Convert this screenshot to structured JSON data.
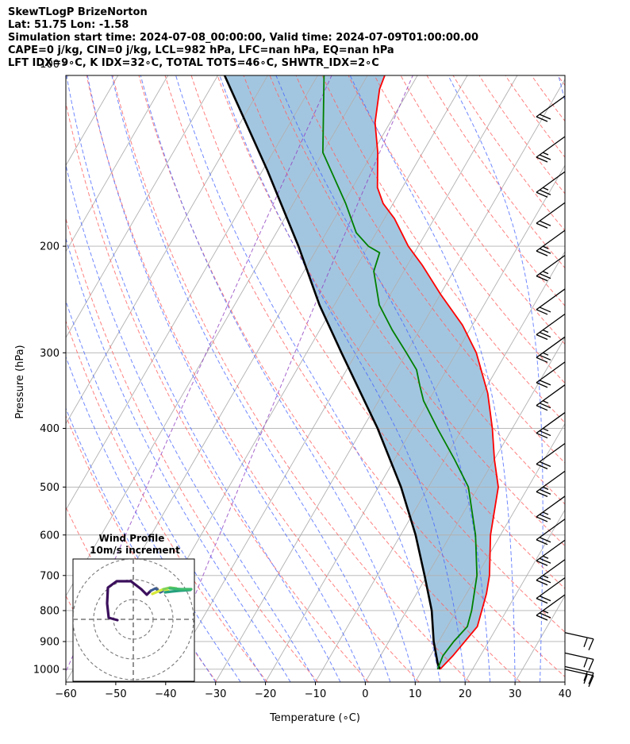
{
  "header": {
    "line1": "SkewTLogP BrizeNorton",
    "line2": "Lat: 51.75   Lon: -1.58",
    "line3": "Simulation start time: 2024-07-08_00:00:00, Valid time: 2024-07-09T01:00:00.00",
    "line4": "CAPE=0 j/kg, CIN=0 j/kg, LCL=982 hPa, LFC=nan hPa, EQ=nan hPa",
    "line5": "LFT IDX=9∘C, K IDX=32∘C, TOTAL TOTS=46∘C, SHWTR_IDX=2∘C"
  },
  "chart_data": {
    "type": "line",
    "subtype": "skew-T log-p",
    "xlabel": "Temperature (∘C)",
    "ylabel": "Pressure (hPa)",
    "xlim": [
      -60,
      40
    ],
    "ylim": [
      1050,
      100
    ],
    "log_y": true,
    "grid": true,
    "x_ticks": [
      "−60",
      "−50",
      "−40",
      "−30",
      "−20",
      "−10",
      "0",
      "10",
      "20",
      "30",
      "40"
    ],
    "y_ticks": [
      "1000",
      "900",
      "800",
      "700",
      "600",
      "500",
      "400",
      "300",
      "200",
      "100"
    ],
    "colors": {
      "temperature": "#ff0000",
      "dewpoint": "#008000",
      "parcel": "#000000",
      "shade": "#a3c6e0",
      "dry_adiabat": "#ff6060",
      "moist_adiabat": "#4060ff",
      "mixing_ratio": "#9040c0",
      "isotherm": "#b0b0b0"
    },
    "series": [
      {
        "key": "temperature",
        "points": [
          [
            1000,
            13.5
          ],
          [
            950,
            14.5
          ],
          [
            850,
            16
          ],
          [
            750,
            14
          ],
          [
            700,
            12.5
          ],
          [
            600,
            8
          ],
          [
            500,
            4
          ],
          [
            450,
            0
          ],
          [
            400,
            -4
          ],
          [
            350,
            -9
          ],
          [
            300,
            -16
          ],
          [
            270,
            -22
          ],
          [
            240,
            -30
          ],
          [
            215,
            -37
          ],
          [
            200,
            -42
          ],
          [
            180,
            -48
          ],
          [
            170,
            -52
          ],
          [
            160,
            -55
          ],
          [
            140,
            -59
          ],
          [
            125,
            -63
          ],
          [
            110,
            -66
          ],
          [
            100,
            -67
          ]
        ]
      },
      {
        "key": "dewpoint",
        "points": [
          [
            1000,
            13
          ],
          [
            950,
            12.5
          ],
          [
            900,
            13
          ],
          [
            850,
            14
          ],
          [
            800,
            13
          ],
          [
            700,
            10
          ],
          [
            600,
            5
          ],
          [
            500,
            -2
          ],
          [
            450,
            -8
          ],
          [
            400,
            -15
          ],
          [
            360,
            -21
          ],
          [
            340,
            -23.5
          ],
          [
            320,
            -26
          ],
          [
            300,
            -30
          ],
          [
            275,
            -35.5
          ],
          [
            250,
            -41
          ],
          [
            220,
            -46
          ],
          [
            205,
            -47
          ],
          [
            200,
            -50
          ],
          [
            190,
            -54
          ],
          [
            170,
            -59.5
          ],
          [
            140,
            -70
          ],
          [
            100,
            -80
          ]
        ]
      },
      {
        "key": "parcel",
        "points": [
          [
            1000,
            13.5
          ],
          [
            982,
            12.5
          ],
          [
            900,
            9
          ],
          [
            800,
            5
          ],
          [
            700,
            -0.5
          ],
          [
            600,
            -7
          ],
          [
            500,
            -15.5
          ],
          [
            400,
            -27
          ],
          [
            300,
            -43
          ],
          [
            250,
            -53
          ],
          [
            200,
            -64
          ],
          [
            150,
            -79
          ],
          [
            100,
            -101
          ]
        ]
      }
    ],
    "inset": {
      "title": "Wind Profile",
      "subtitle": "10m/s increment"
    }
  }
}
